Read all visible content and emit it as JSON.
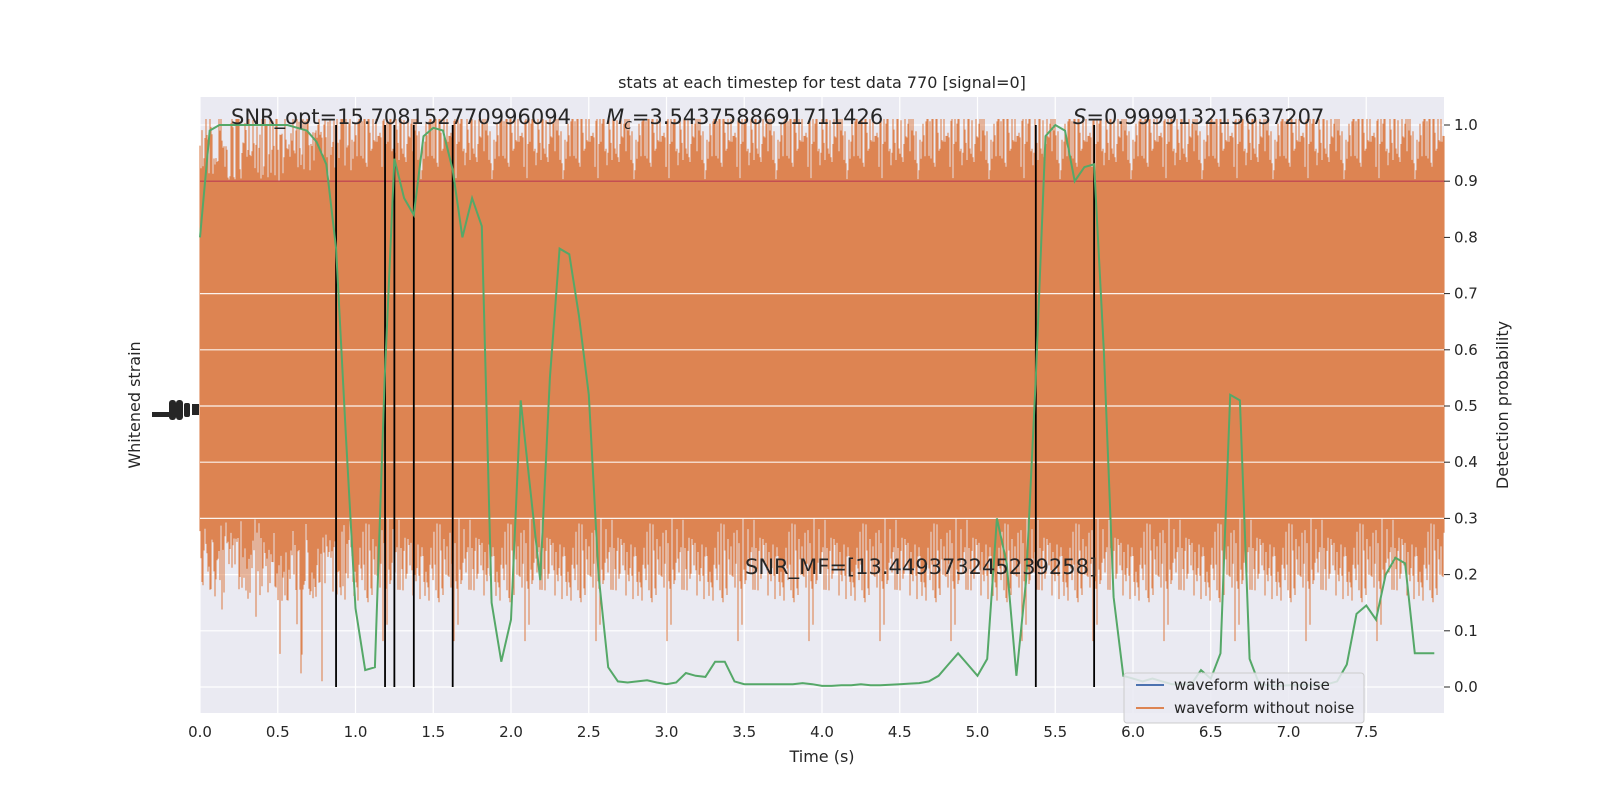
{
  "chart_data": {
    "type": "line",
    "title": "stats at each timestep for test data 770 [signal=0]",
    "xlabel": "Time (s)",
    "ylabel_left": "Whitened strain",
    "ylabel_right": "Detection probability",
    "xlim": [
      0,
      8.0
    ],
    "ylim_right": [
      -0.05,
      1.05
    ],
    "x_ticks": [
      0.0,
      0.5,
      1.0,
      1.5,
      2.0,
      2.5,
      3.0,
      3.5,
      4.0,
      4.5,
      5.0,
      5.5,
      6.0,
      6.5,
      7.0,
      7.5
    ],
    "x_tick_labels": [
      "0.0",
      "0.5",
      "1.0",
      "1.5",
      "2.0",
      "2.5",
      "3.0",
      "3.5",
      "4.0",
      "4.5",
      "5.0",
      "5.5",
      "6.0",
      "6.5",
      "7.0",
      "7.5"
    ],
    "y_right_ticks": [
      0.0,
      0.1,
      0.2,
      0.3,
      0.4,
      0.5,
      0.6,
      0.7,
      0.8,
      0.9,
      1.0
    ],
    "y_right_tick_labels": [
      "0.0",
      "0.1",
      "0.2",
      "0.3",
      "0.4",
      "0.5",
      "0.6",
      "0.7",
      "0.8",
      "0.9",
      "1.0"
    ],
    "grid": true,
    "legend_placement": "lower-right",
    "threshold": 0.9,
    "threshold_color": "#c44e52",
    "detection_color": "#55a868",
    "strain_color": "#dd8452",
    "event_line_color": "#000000",
    "event_lines_x": [
      0.875,
      1.19,
      1.25,
      1.375,
      1.625,
      5.375,
      5.75
    ],
    "annotations": {
      "snr_opt": "SNR_opt=15.708152770996094",
      "mc_symbol": "M",
      "mc_sub": "c",
      "mc_value": "=3.5437588691711426",
      "s_symbol": "S",
      "s_value": "=0.999913215637207",
      "snr_mf": "SNR_MF=[13.449373245239258]"
    },
    "series": [
      {
        "name": "waveform with noise",
        "color": "#4c72b0"
      },
      {
        "name": "waveform without noise",
        "color": "#dd8452"
      }
    ],
    "detection_probability": {
      "x": [
        0.0,
        0.0625,
        0.125,
        0.1875,
        0.25,
        0.3125,
        0.375,
        0.4375,
        0.5,
        0.5625,
        0.625,
        0.6875,
        0.75,
        0.8125,
        0.875,
        0.9375,
        1.0,
        1.0625,
        1.125,
        1.1875,
        1.25,
        1.3125,
        1.375,
        1.4375,
        1.5,
        1.5625,
        1.625,
        1.6875,
        1.75,
        1.8125,
        1.875,
        1.9375,
        2.0,
        2.0625,
        2.125,
        2.1875,
        2.25,
        2.3125,
        2.375,
        2.4375,
        2.5,
        2.5625,
        2.625,
        2.6875,
        2.75,
        2.8125,
        2.875,
        2.9375,
        3.0,
        3.0625,
        3.125,
        3.1875,
        3.25,
        3.3125,
        3.375,
        3.4375,
        3.5,
        3.5625,
        3.625,
        3.6875,
        3.75,
        3.8125,
        3.875,
        3.9375,
        4.0,
        4.0625,
        4.125,
        4.1875,
        4.25,
        4.3125,
        4.375,
        4.4375,
        4.5,
        4.5625,
        4.625,
        4.6875,
        4.75,
        4.8125,
        4.875,
        4.9375,
        5.0,
        5.0625,
        5.125,
        5.1875,
        5.25,
        5.3125,
        5.375,
        5.4375,
        5.5,
        5.5625,
        5.625,
        5.6875,
        5.75,
        5.8125,
        5.875,
        5.9375,
        6.0,
        6.0625,
        6.125,
        6.1875,
        6.25,
        6.3125,
        6.375,
        6.4375,
        6.5,
        6.5625,
        6.625,
        6.6875,
        6.75,
        6.8125,
        6.875,
        6.9375,
        7.0,
        7.0625,
        7.125,
        7.1875,
        7.25,
        7.3125,
        7.375,
        7.4375,
        7.5,
        7.5625,
        7.625,
        7.6875,
        7.75,
        7.8125,
        7.875,
        7.9375
      ],
      "y": [
        0.8,
        0.99,
        1.0,
        1.0,
        1.0,
        1.0,
        1.0,
        1.0,
        1.0,
        1.0,
        0.995,
        0.99,
        0.97,
        0.93,
        0.78,
        0.45,
        0.14,
        0.03,
        0.035,
        0.55,
        0.94,
        0.87,
        0.84,
        0.98,
        0.995,
        0.99,
        0.92,
        0.8,
        0.87,
        0.82,
        0.15,
        0.045,
        0.12,
        0.51,
        0.35,
        0.19,
        0.55,
        0.78,
        0.77,
        0.66,
        0.52,
        0.2,
        0.035,
        0.01,
        0.008,
        0.01,
        0.012,
        0.008,
        0.005,
        0.008,
        0.025,
        0.02,
        0.018,
        0.045,
        0.045,
        0.01,
        0.005,
        0.005,
        0.005,
        0.005,
        0.005,
        0.005,
        0.007,
        0.005,
        0.002,
        0.002,
        0.003,
        0.003,
        0.005,
        0.003,
        0.003,
        0.004,
        0.005,
        0.006,
        0.007,
        0.01,
        0.02,
        0.04,
        0.06,
        0.04,
        0.02,
        0.05,
        0.3,
        0.22,
        0.02,
        0.19,
        0.55,
        0.98,
        1.0,
        0.99,
        0.9,
        0.925,
        0.93,
        0.6,
        0.16,
        0.02,
        0.015,
        0.01,
        0.015,
        0.01,
        0.005,
        0.005,
        0.005,
        0.03,
        0.015,
        0.06,
        0.52,
        0.51,
        0.05,
        0.005,
        0.003,
        0.002,
        0.003,
        0.003,
        0.003,
        0.003,
        0.005,
        0.01,
        0.04,
        0.13,
        0.145,
        0.12,
        0.2,
        0.23,
        0.22,
        0.06,
        0.06,
        0.06
      ]
    }
  }
}
